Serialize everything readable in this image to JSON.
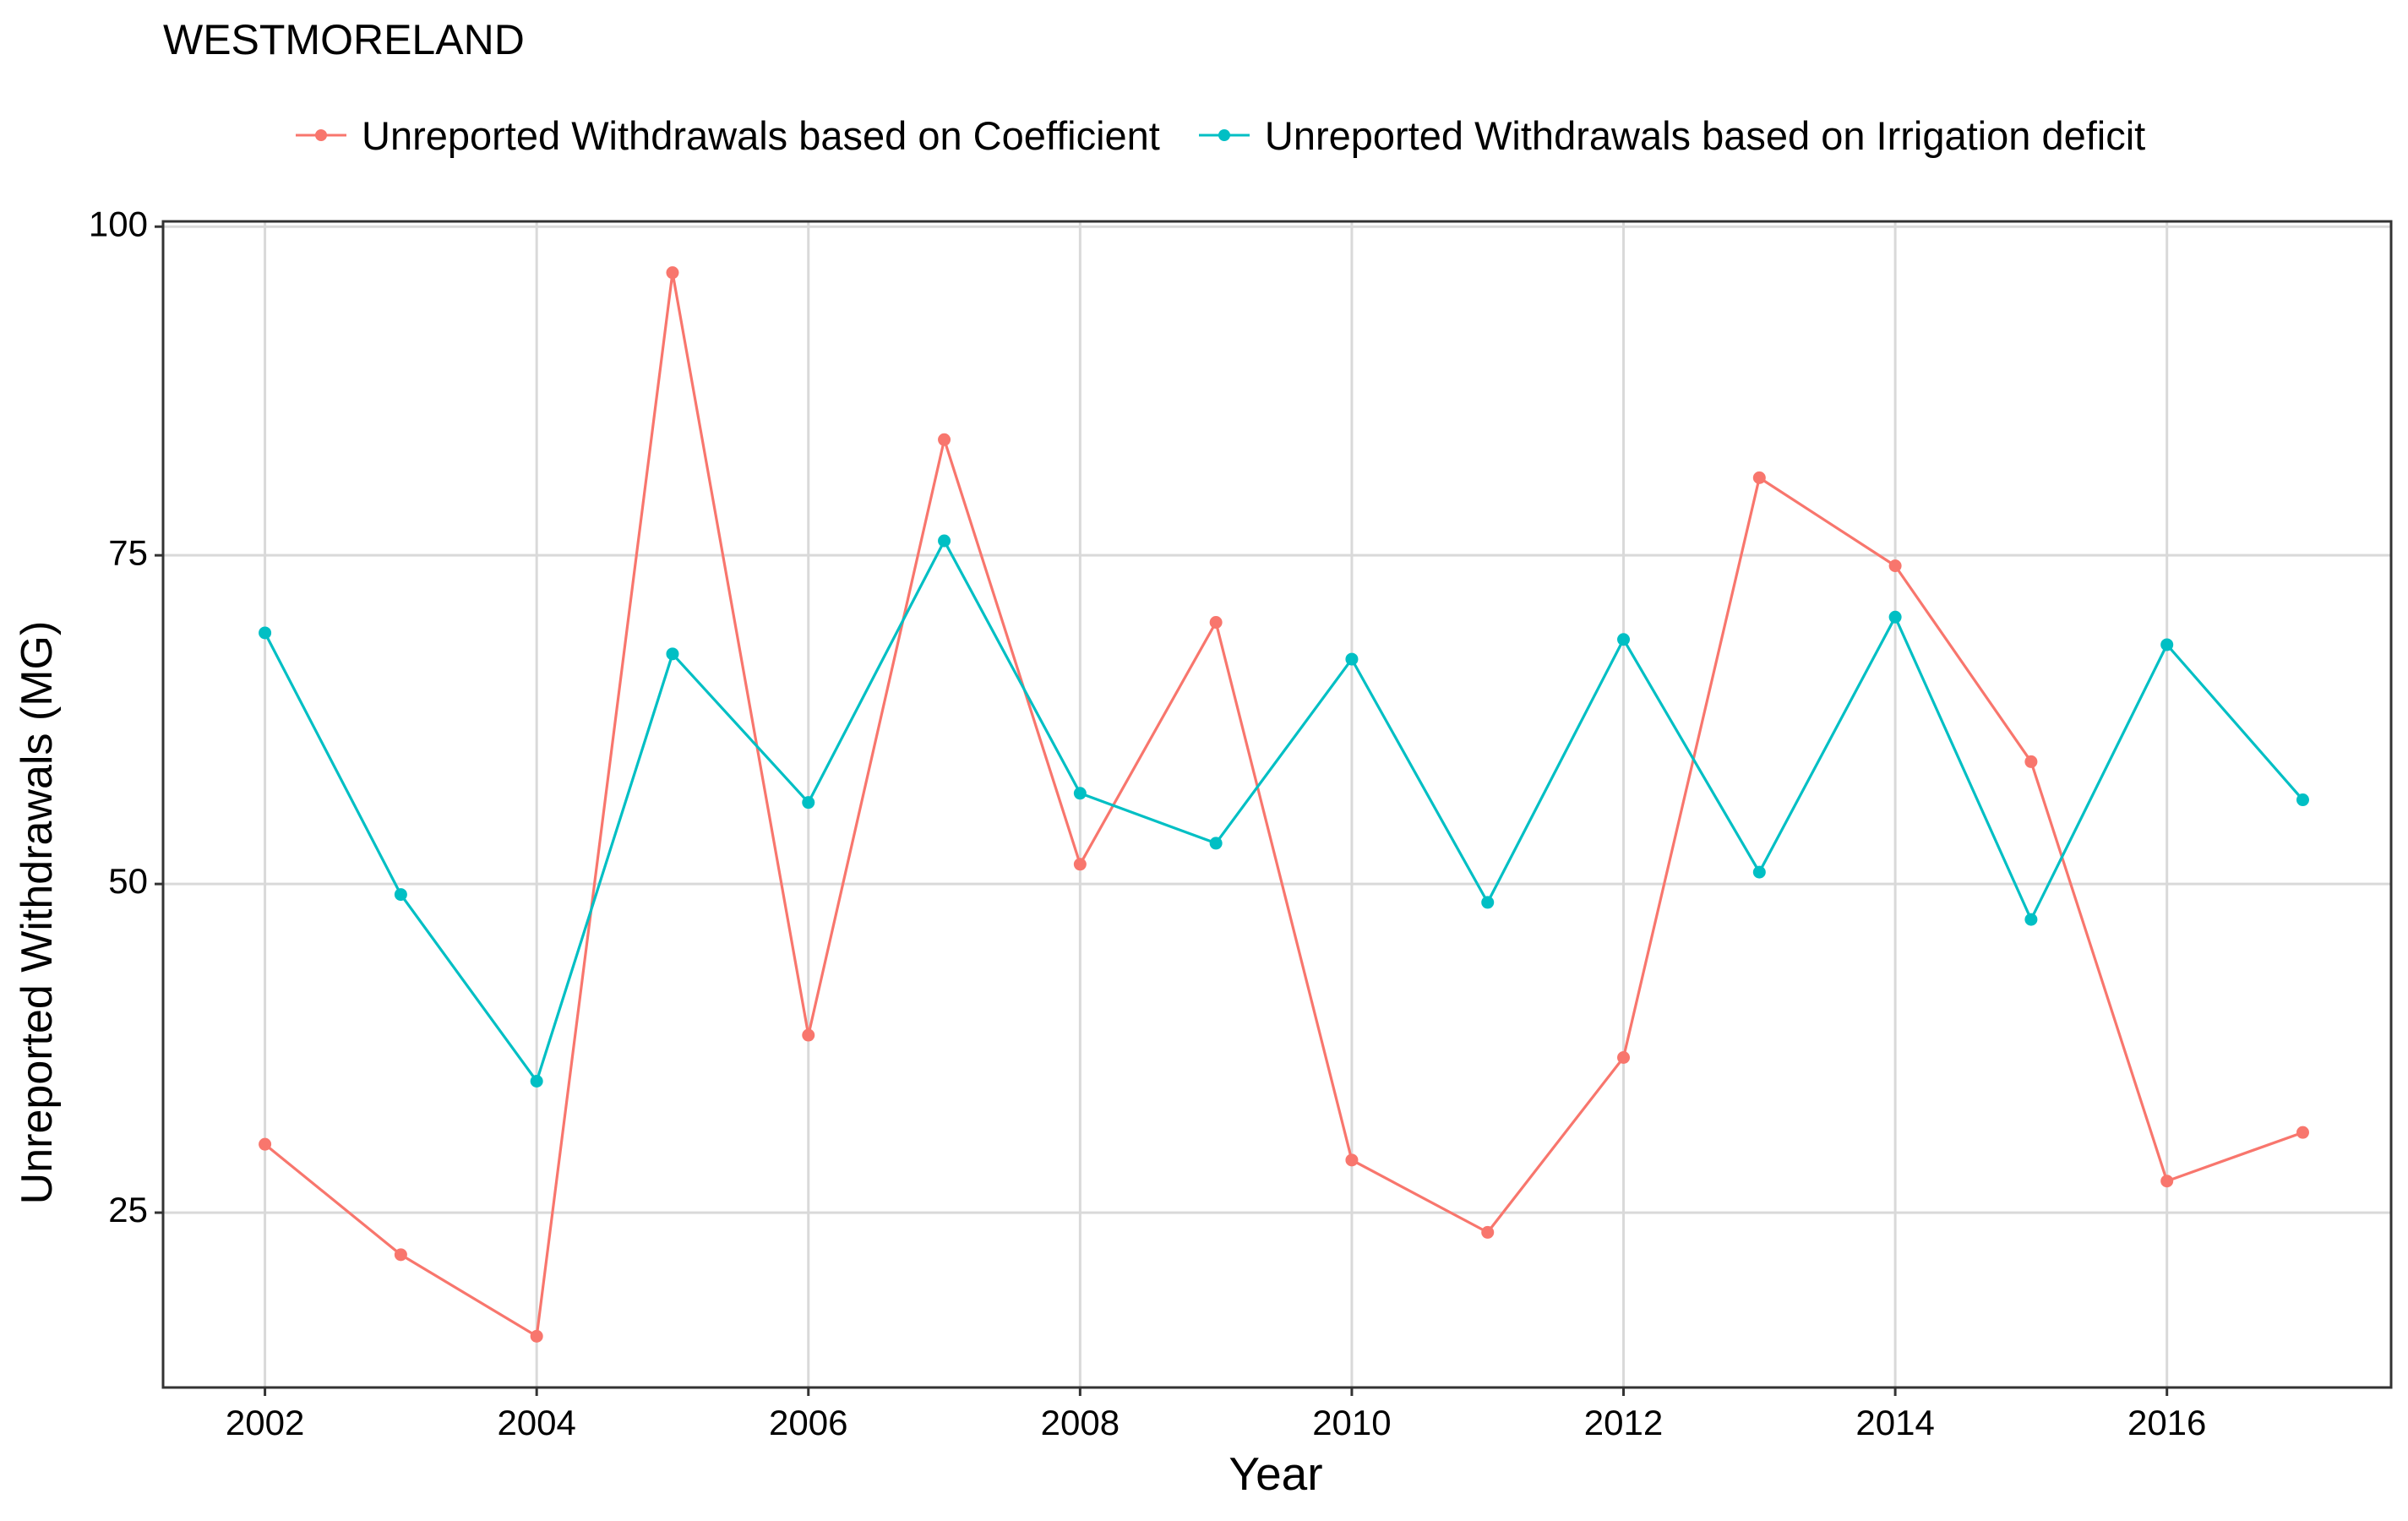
{
  "chart_data": {
    "type": "line",
    "title": "WESTMORELAND",
    "xlabel": "Year",
    "ylabel": "Unreported Withdrawals (MG)",
    "x": [
      2002,
      2003,
      2004,
      2005,
      2006,
      2007,
      2008,
      2009,
      2010,
      2011,
      2012,
      2013,
      2014,
      2015,
      2016,
      2017
    ],
    "xlim": [
      2001.25,
      2017.65
    ],
    "ylim": [
      11.7,
      100.4
    ],
    "x_ticks": [
      "2002",
      "2004",
      "2006",
      "2008",
      "2010",
      "2012",
      "2014",
      "2016"
    ],
    "y_ticks": [
      "25",
      "50",
      "75",
      "100"
    ],
    "grid": true,
    "legend_position": "top",
    "series": [
      {
        "name": "Unreported Withdrawals based on Coefficient",
        "color": "#F8766D",
        "values": [
          30.2,
          21.8,
          15.6,
          96.5,
          38.5,
          83.8,
          51.5,
          69.9,
          29.0,
          23.5,
          36.8,
          80.9,
          74.2,
          59.3,
          27.4,
          31.1
        ]
      },
      {
        "name": "Unreported Withdrawals based on Irrigation deficit",
        "color": "#00BFC4",
        "values": [
          69.1,
          49.2,
          35.0,
          67.5,
          56.2,
          76.1,
          56.9,
          53.1,
          67.1,
          48.6,
          68.6,
          50.9,
          70.3,
          47.3,
          68.2,
          56.4
        ]
      }
    ]
  }
}
